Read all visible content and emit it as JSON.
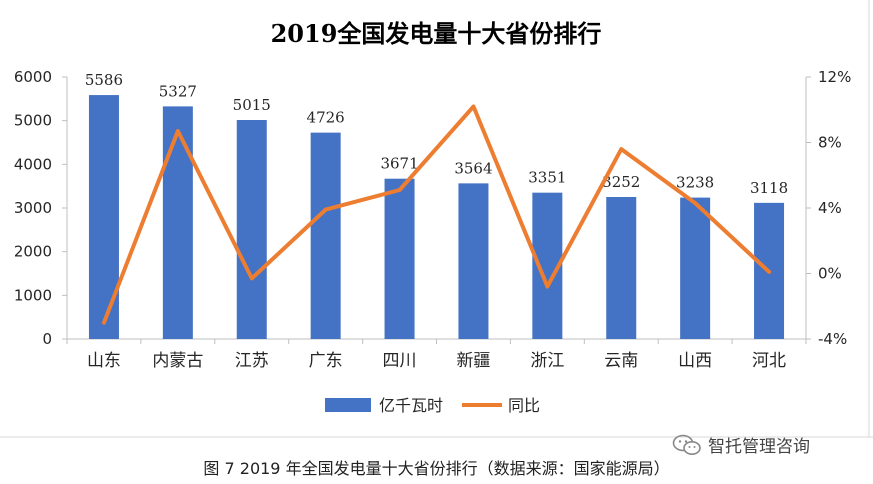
{
  "chart_data": {
    "type": "bar+line",
    "title": "2019全国发电量十大省份排行",
    "categories": [
      "山东",
      "内蒙古",
      "江苏",
      "广东",
      "四川",
      "新疆",
      "浙江",
      "云南",
      "山西",
      "河北"
    ],
    "series": [
      {
        "name": "亿千瓦时",
        "type": "bar",
        "axis": "left",
        "color": "#4472C4",
        "values": [
          5586,
          5327,
          5015,
          4726,
          3671,
          3564,
          3351,
          3252,
          3238,
          3118
        ],
        "labels": [
          "5586",
          "5327",
          "5015",
          "4726",
          "3671",
          "3564",
          "3351",
          "3252",
          "3238",
          "3118"
        ]
      },
      {
        "name": "同比",
        "type": "line",
        "axis": "right",
        "color": "#ED7D31",
        "values": [
          -3.0,
          8.7,
          -0.3,
          3.9,
          5.1,
          10.2,
          -0.8,
          7.6,
          4.3,
          0.1
        ]
      }
    ],
    "y_left": {
      "min": 0,
      "max": 6000,
      "ticks": [
        "0",
        "1000",
        "2000",
        "3000",
        "4000",
        "5000",
        "6000"
      ]
    },
    "y_right": {
      "min": -4,
      "max": 12,
      "ticks": [
        "-4%",
        "0%",
        "4%",
        "8%",
        "12%"
      ]
    },
    "legend_position": "bottom-center",
    "grid": false
  },
  "caption": "图 7 2019 年全国发电量十大省份排行（数据来源：国家能源局）",
  "watermark": {
    "icon": "wechat-icon",
    "text": "智托管理咨询"
  }
}
